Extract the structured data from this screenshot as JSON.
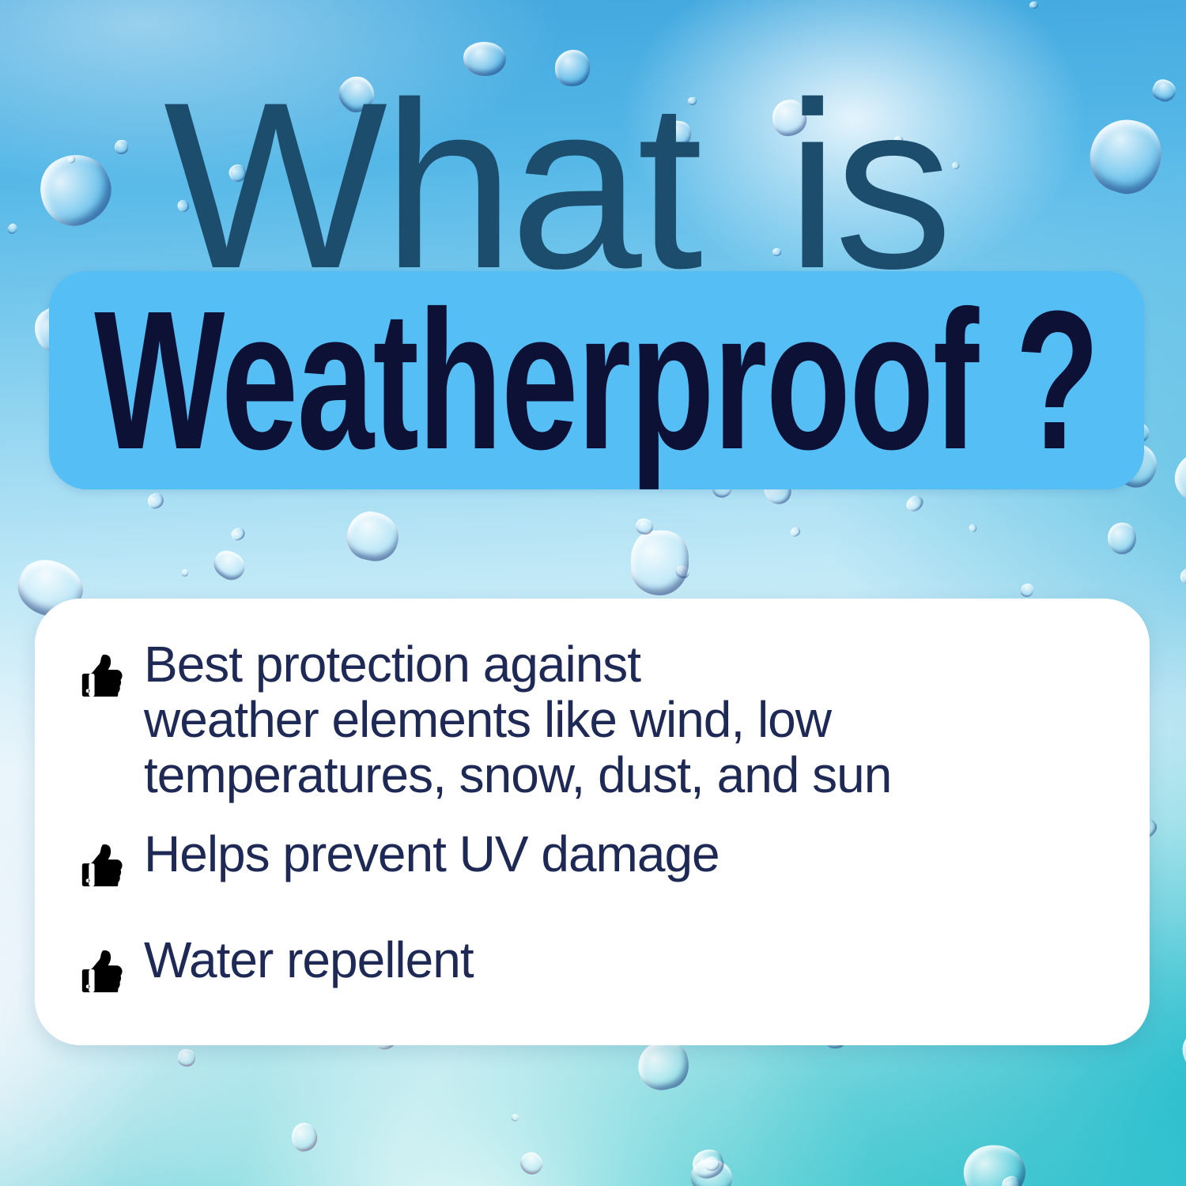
{
  "graphic": {
    "heading_top": "What is",
    "heading_highlight": "Weatherproof ?",
    "bullets": [
      {
        "icon": "thumbs-up-icon",
        "text": "Best protection against\nweather elements like wind, low\ntemperatures, snow, dust, and sun"
      },
      {
        "icon": "thumbs-up-icon",
        "text": "Helps prevent UV damage"
      },
      {
        "icon": "thumbs-up-icon",
        "text": "Water repellent"
      }
    ],
    "colors": {
      "heading_top_text": "#1d4d6d",
      "highlight_bg": "#55bef5",
      "highlight_text": "#0d1136",
      "bullet_text": "#1e2a55",
      "icon": "#000000",
      "card_bg": "#ffffff"
    }
  }
}
